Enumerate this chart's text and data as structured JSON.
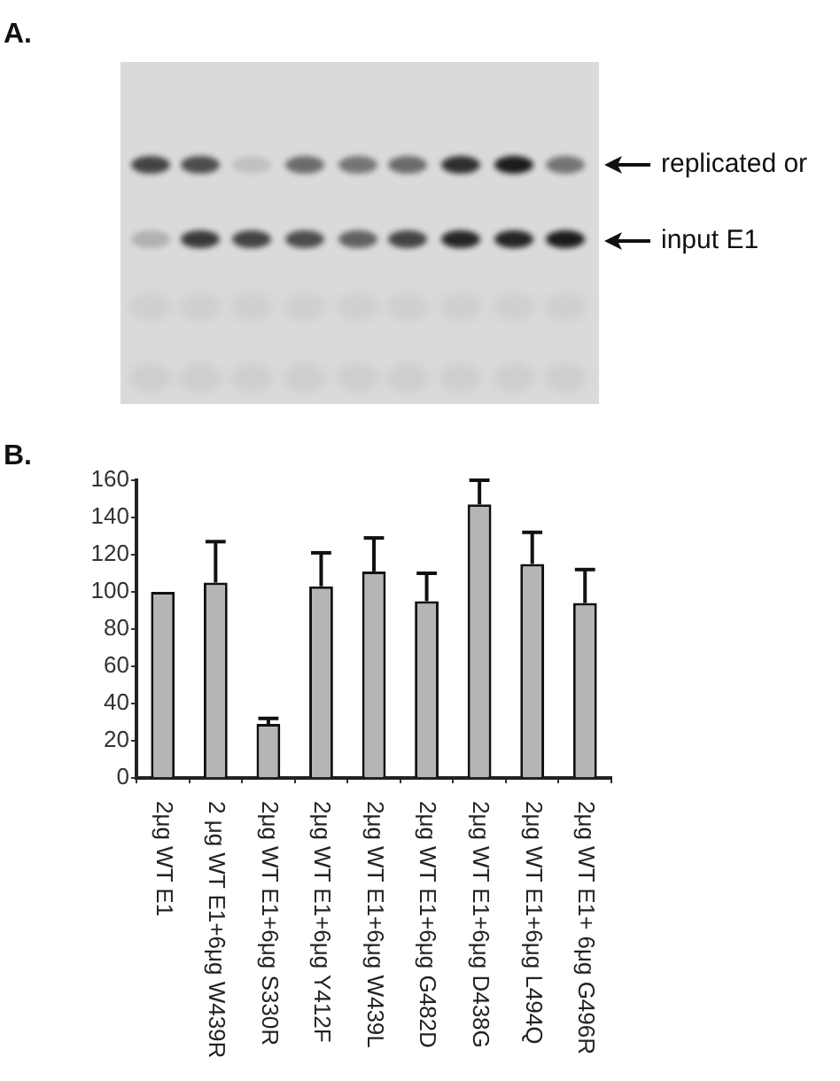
{
  "chart_data": {
    "type": "bar",
    "categories": [
      "2μg WT E1",
      "2 μg WT E1+6μg W439R",
      "2μg WT E1+6μg S330R",
      "2μg WT E1+6μg Y412F",
      "2μg WT E1+6μg W439L",
      "2μg WT E1+6μg G482D",
      "2μg WT E1+6μg D438G",
      "2μg WT E1+6μg L494Q",
      "2μg WT E1+ 6μg G496R"
    ],
    "values": [
      100,
      105,
      29,
      103,
      111,
      95,
      147,
      115,
      94
    ],
    "errors": [
      null,
      [
        105,
        127
      ],
      [
        29,
        32
      ],
      [
        103,
        121
      ],
      [
        111,
        129
      ],
      [
        95,
        110
      ],
      [
        147,
        160
      ],
      [
        115,
        132
      ],
      [
        94,
        112
      ]
    ],
    "color": "#b5b5b5",
    "ylim": [
      0,
      160
    ],
    "yticks": [
      0,
      20,
      40,
      60,
      80,
      100,
      120,
      140,
      160
    ],
    "annotations": [
      "A.",
      "B.",
      "replicated or",
      "input E1"
    ]
  }
}
